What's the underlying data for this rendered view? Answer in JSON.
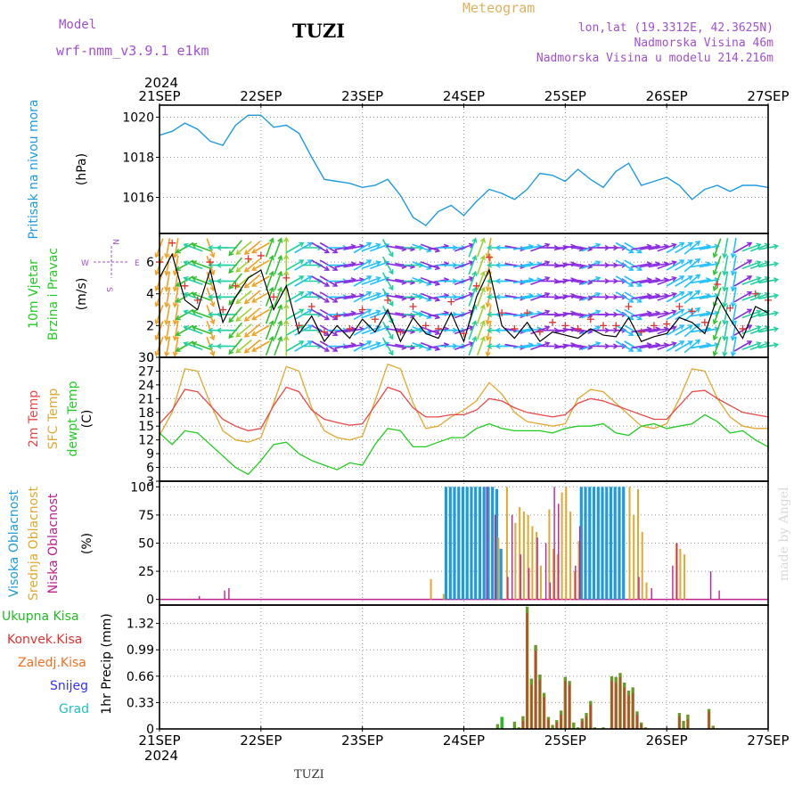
{
  "header": {
    "model_label": "Model",
    "model_name": "wrf-nmm_v3.9.1 e1km",
    "title": "TUZI",
    "meteogram": "Meteogram",
    "location": "lon,lat (19.3312E, 42.3625N)",
    "altitude": "Nadmorska Visina 46m",
    "model_altitude": "Nadmorska Visina u modelu 214.216m",
    "year": "2024"
  },
  "footer": {
    "station": "TUZI",
    "credit": "made by Angel"
  },
  "colors": {
    "pressure": "#1e9be0",
    "wind_speed": "#000000",
    "gust": "#e03030",
    "t2m": "#e84848",
    "sfc": "#e0a830",
    "dewpoint": "#22cc22",
    "high_cloud": "#1e9be0",
    "mid_cloud": "#e0a830",
    "low_cloud": "#c02090",
    "total_precip": "#6a9a2a",
    "convective": "#e03030",
    "grid": "#999999"
  },
  "chart_data": [
    {
      "type": "line",
      "id": "pressure",
      "ylabel_main": "Pritisak na nivou mora",
      "ylabel_unit": "(hPa)",
      "x_tick_labels": [
        "21SEP",
        "22SEP",
        "23SEP",
        "24SEP",
        "25SEP",
        "26SEP",
        "27SEP"
      ],
      "ylim": [
        1014.2,
        1020.6
      ],
      "yticks": [
        1016,
        1018,
        1020
      ],
      "x_hours": [
        0,
        3,
        6,
        9,
        12,
        15,
        18,
        21,
        24,
        27,
        30,
        33,
        36,
        39,
        42,
        45,
        48,
        51,
        54,
        57,
        60,
        63,
        66,
        69,
        72,
        75,
        78,
        81,
        84,
        87,
        90,
        93,
        96,
        99,
        102,
        105,
        108,
        111,
        114,
        117,
        120,
        123,
        126,
        129,
        132,
        135,
        138,
        141,
        144
      ],
      "values": [
        1019.1,
        1019.3,
        1019.7,
        1019.4,
        1018.8,
        1018.6,
        1019.6,
        1020.1,
        1020.1,
        1019.5,
        1019.6,
        1019.2,
        1018.0,
        1016.9,
        1016.8,
        1016.7,
        1016.5,
        1016.6,
        1016.9,
        1016.1,
        1015.0,
        1014.6,
        1015.3,
        1015.6,
        1015.1,
        1015.8,
        1016.4,
        1016.2,
        1015.9,
        1016.4,
        1017.2,
        1017.1,
        1016.8,
        1017.4,
        1016.9,
        1016.5,
        1017.3,
        1017.7,
        1016.6,
        1016.8,
        1017.0,
        1016.6,
        1015.9,
        1016.4,
        1016.6,
        1016.3,
        1016.6,
        1016.6,
        1016.5
      ]
    },
    {
      "type": "line",
      "id": "wind",
      "ylabel_main": "10m Vjetar",
      "ylabel_sub": "Brzina i Pravac",
      "ylabel_unit": "(m/s)",
      "compass": [
        "W",
        "E",
        "N",
        "S"
      ],
      "ylim": [
        0,
        7.8
      ],
      "yticks": [
        0,
        2,
        4,
        6
      ],
      "x_hours": [
        0,
        3,
        6,
        9,
        12,
        15,
        18,
        21,
        24,
        27,
        30,
        33,
        36,
        39,
        42,
        45,
        48,
        51,
        54,
        57,
        60,
        63,
        66,
        69,
        72,
        75,
        78,
        81,
        84,
        87,
        90,
        93,
        96,
        99,
        102,
        105,
        108,
        111,
        114,
        117,
        120,
        123,
        126,
        129,
        132,
        135,
        138,
        141,
        144
      ],
      "speed": [
        5.0,
        6.5,
        3.6,
        3.0,
        5.5,
        2.2,
        3.8,
        5.0,
        5.5,
        3.0,
        4.5,
        1.5,
        2.6,
        1.0,
        2.0,
        1.2,
        2.4,
        1.6,
        3.0,
        1.0,
        2.5,
        1.5,
        1.2,
        2.8,
        1.0,
        3.8,
        5.5,
        2.0,
        1.2,
        2.2,
        1.0,
        1.6,
        1.4,
        1.2,
        1.8,
        1.4,
        1.3,
        2.5,
        1.0,
        1.3,
        1.5,
        2.5,
        2.2,
        1.5,
        3.8,
        2.4,
        1.2,
        3.2,
        2.8
      ],
      "gust": [
        6.0,
        7.2,
        4.5,
        3.6,
        6.0,
        3.0,
        4.5,
        6.2,
        6.4,
        3.8,
        5.0,
        2.0,
        3.2,
        1.6,
        2.6,
        1.8,
        3.0,
        2.4,
        3.6,
        1.6,
        3.2,
        2.0,
        1.8,
        3.5,
        1.5,
        4.5,
        6.3,
        2.8,
        1.8,
        2.8,
        1.6,
        2.2,
        2.0,
        1.8,
        2.4,
        2.0,
        2.0,
        3.2,
        1.6,
        2.0,
        2.1,
        3.2,
        2.9,
        2.2,
        4.6,
        3.1,
        1.8,
        4.0,
        3.6
      ],
      "direction_deg": [
        20,
        10,
        60,
        110,
        340,
        90,
        40,
        50,
        60,
        200,
        180,
        240,
        270,
        300,
        270,
        260,
        240,
        250,
        330,
        280,
        270,
        290,
        260,
        270,
        250,
        200,
        10,
        90,
        280,
        260,
        250,
        270,
        260,
        280,
        250,
        270,
        270,
        300,
        260,
        260,
        250,
        240,
        230,
        260,
        20,
        10,
        240,
        250,
        260
      ],
      "barb_colors": [
        "#1e50ff",
        "#8a2be2",
        "#20c0ff",
        "#20d0a0",
        "#30c030",
        "#a0d030",
        "#f0a020"
      ]
    },
    {
      "type": "line",
      "id": "temperature",
      "ylabel_main": "2m Temp",
      "ylabel_sub": "SFC Temp",
      "ylabel_sub2": "dewpt Temp",
      "ylabel_unit": "(C)",
      "ylim": [
        3,
        30
      ],
      "yticks": [
        3,
        6,
        9,
        12,
        15,
        18,
        21,
        24,
        27,
        30
      ],
      "x_hours": [
        0,
        3,
        6,
        9,
        12,
        15,
        18,
        21,
        24,
        27,
        30,
        33,
        36,
        39,
        42,
        45,
        48,
        51,
        54,
        57,
        60,
        63,
        66,
        69,
        72,
        75,
        78,
        81,
        84,
        87,
        90,
        93,
        96,
        99,
        102,
        105,
        108,
        111,
        114,
        117,
        120,
        123,
        126,
        129,
        132,
        135,
        138,
        141,
        144
      ],
      "t2m": [
        15.5,
        18.5,
        23.0,
        22.5,
        19.5,
        16.5,
        15.0,
        14.0,
        14.5,
        19.5,
        23.5,
        22.5,
        18.5,
        16.5,
        15.8,
        15.2,
        15.5,
        19.5,
        23.5,
        22.5,
        19.0,
        17.0,
        17.0,
        17.5,
        17.5,
        18.5,
        21.0,
        20.5,
        19.0,
        18.0,
        17.5,
        17.0,
        17.5,
        20.0,
        21.0,
        20.5,
        19.5,
        18.5,
        17.5,
        16.5,
        16.5,
        19.5,
        22.5,
        22.8,
        21.0,
        19.5,
        18.0,
        17.5,
        17.0
      ],
      "sfc": [
        13.0,
        18.0,
        27.5,
        27.0,
        20.0,
        14.0,
        12.0,
        11.5,
        12.5,
        20.0,
        28.0,
        27.0,
        19.0,
        14.0,
        12.5,
        12.0,
        12.8,
        20.5,
        28.5,
        27.5,
        20.0,
        14.5,
        15.0,
        17.0,
        18.5,
        20.5,
        24.5,
        22.0,
        18.0,
        16.0,
        15.5,
        15.0,
        15.5,
        21.0,
        23.0,
        22.5,
        20.0,
        17.5,
        15.0,
        14.5,
        15.5,
        21.0,
        27.5,
        27.0,
        21.0,
        17.0,
        15.0,
        14.5,
        14.5
      ],
      "dewpoint": [
        13.5,
        11.0,
        14.0,
        13.5,
        11.0,
        8.5,
        6.0,
        4.5,
        7.5,
        11.0,
        11.5,
        9.0,
        7.5,
        6.5,
        5.5,
        7.0,
        6.5,
        11.0,
        14.5,
        14.0,
        10.5,
        10.5,
        11.5,
        12.5,
        12.5,
        14.5,
        15.5,
        14.5,
        14.0,
        14.0,
        14.0,
        13.5,
        14.5,
        15.0,
        15.0,
        15.5,
        13.5,
        13.0,
        15.0,
        15.5,
        14.5,
        15.0,
        15.5,
        17.5,
        16.0,
        13.5,
        14.0,
        12.0,
        10.5
      ]
    },
    {
      "type": "bar",
      "id": "cloud",
      "ylabel_main": "Visoka Oblacnost",
      "ylabel_sub": "Srednja Oblacnost",
      "ylabel_sub2": "Niska Oblacnost",
      "ylabel_unit": "(%)",
      "ylim": [
        -5,
        105
      ],
      "yticks": [
        0,
        25,
        50,
        75,
        100
      ],
      "high": [
        [
          68,
          100
        ],
        [
          69,
          100
        ],
        [
          70,
          100
        ],
        [
          71,
          100
        ],
        [
          72,
          100
        ],
        [
          73,
          100
        ],
        [
          74,
          100
        ],
        [
          75,
          100
        ],
        [
          76,
          100
        ],
        [
          77,
          100
        ],
        [
          78,
          100
        ],
        [
          79,
          100
        ],
        [
          80,
          98
        ],
        [
          81,
          45
        ],
        [
          100,
          100
        ],
        [
          101,
          100
        ],
        [
          102,
          100
        ],
        [
          103,
          100
        ],
        [
          104,
          100
        ],
        [
          105,
          100
        ],
        [
          106,
          100
        ],
        [
          107,
          100
        ],
        [
          108,
          100
        ],
        [
          109,
          100
        ],
        [
          110,
          100
        ]
      ],
      "mid": [
        [
          64,
          18
        ],
        [
          67,
          5
        ],
        [
          80,
          55
        ],
        [
          82,
          100
        ],
        [
          84,
          68
        ],
        [
          85,
          82
        ],
        [
          86,
          78
        ],
        [
          87,
          75
        ],
        [
          88,
          65
        ],
        [
          89,
          60
        ],
        [
          90,
          30
        ],
        [
          92,
          80
        ],
        [
          93,
          45
        ],
        [
          94,
          40
        ],
        [
          95,
          95
        ],
        [
          96,
          100
        ],
        [
          97,
          78
        ],
        [
          98,
          25
        ],
        [
          99,
          52
        ],
        [
          111,
          100
        ],
        [
          112,
          75
        ],
        [
          113,
          98
        ],
        [
          114,
          60
        ],
        [
          115,
          15
        ],
        [
          122,
          50
        ],
        [
          123,
          45
        ],
        [
          124,
          40
        ]
      ],
      "low": [
        [
          9,
          3
        ],
        [
          15,
          8
        ],
        [
          16,
          10
        ],
        [
          77,
          100
        ],
        [
          79,
          75
        ],
        [
          82,
          20
        ],
        [
          83,
          75
        ],
        [
          85,
          40
        ],
        [
          87,
          28
        ],
        [
          89,
          55
        ],
        [
          91,
          50
        ],
        [
          92,
          15
        ],
        [
          93,
          100
        ],
        [
          94,
          85
        ],
        [
          98,
          30
        ],
        [
          99,
          65
        ],
        [
          113,
          20
        ],
        [
          116,
          10
        ],
        [
          121,
          30
        ],
        [
          122,
          50
        ],
        [
          130,
          25
        ],
        [
          132,
          8
        ]
      ]
    },
    {
      "type": "bar",
      "id": "precip",
      "ylabel_main": "1hr Precip",
      "ylabel_unit": "(mm)",
      "ylim": [
        0,
        1.55
      ],
      "ytick_labels": [
        "0",
        "0.33",
        "0.66",
        "0.99",
        "1.32"
      ],
      "ytick_values": [
        0,
        0.33,
        0.66,
        0.99,
        1.32
      ],
      "legend": [
        "Ukupna Kisa",
        "Konvek.Kisa",
        "Zaledj.Kisa",
        "Snijeg",
        "Grad"
      ],
      "legend_colors": [
        "#22bb22",
        "#e03030",
        "#f07020",
        "#3030ff",
        "#20c0c0"
      ],
      "total": [
        [
          80,
          0.06
        ],
        [
          81,
          0.15
        ],
        [
          84,
          0.09
        ],
        [
          85,
          0.02
        ],
        [
          86,
          0.16
        ],
        [
          87,
          1.53
        ],
        [
          88,
          0.63
        ],
        [
          89,
          1.05
        ],
        [
          90,
          0.68
        ],
        [
          91,
          0.45
        ],
        [
          92,
          0.15
        ],
        [
          93,
          0.05
        ],
        [
          94,
          0.11
        ],
        [
          95,
          0.23
        ],
        [
          96,
          0.65
        ],
        [
          97,
          0.6
        ],
        [
          98,
          0.08
        ],
        [
          99,
          0.02
        ],
        [
          100,
          0.13
        ],
        [
          101,
          0.2
        ],
        [
          102,
          0.35
        ],
        [
          103,
          0.02
        ],
        [
          105,
          0.02
        ],
        [
          107,
          0.66
        ],
        [
          108,
          0.65
        ],
        [
          109,
          0.7
        ],
        [
          110,
          0.58
        ],
        [
          111,
          0.48
        ],
        [
          112,
          0.52
        ],
        [
          113,
          0.22
        ],
        [
          114,
          0.08
        ],
        [
          115,
          0.02
        ],
        [
          123,
          0.2
        ],
        [
          124,
          0.1
        ],
        [
          125,
          0.18
        ],
        [
          130,
          0.25
        ],
        [
          131,
          0.04
        ]
      ],
      "convective": [
        [
          86,
          0.1
        ],
        [
          87,
          1.45
        ],
        [
          88,
          0.55
        ],
        [
          89,
          0.98
        ],
        [
          90,
          0.62
        ],
        [
          91,
          0.4
        ],
        [
          92,
          0.12
        ],
        [
          94,
          0.08
        ],
        [
          95,
          0.18
        ],
        [
          96,
          0.6
        ],
        [
          97,
          0.55
        ],
        [
          100,
          0.1
        ],
        [
          101,
          0.16
        ],
        [
          102,
          0.3
        ],
        [
          107,
          0.6
        ],
        [
          108,
          0.58
        ],
        [
          109,
          0.65
        ],
        [
          110,
          0.52
        ],
        [
          111,
          0.42
        ],
        [
          112,
          0.45
        ],
        [
          113,
          0.18
        ],
        [
          114,
          0.06
        ],
        [
          123,
          0.16
        ],
        [
          125,
          0.12
        ],
        [
          130,
          0.22
        ]
      ],
      "snow": [
        [
          81,
          0.15
        ]
      ]
    }
  ]
}
